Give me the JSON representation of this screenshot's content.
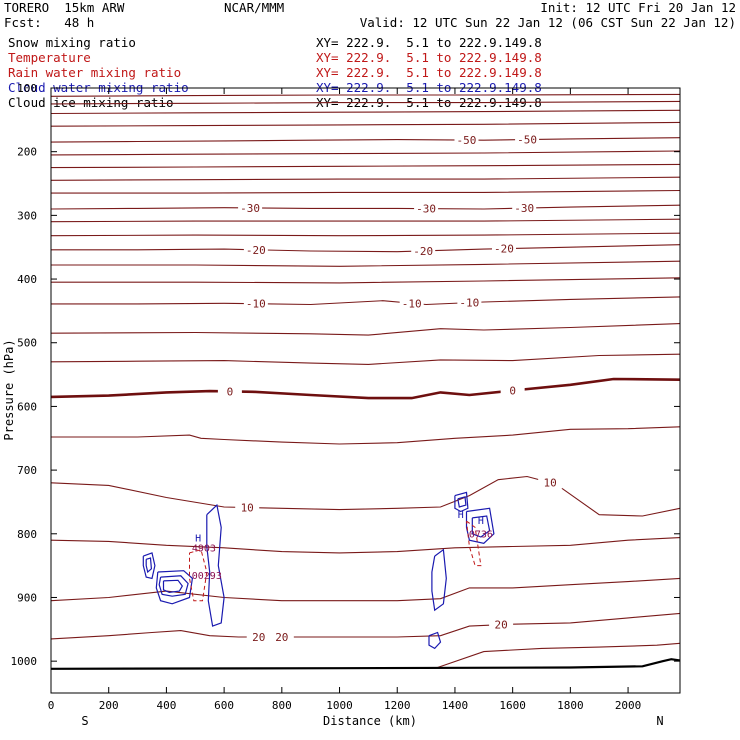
{
  "header": {
    "model": "TORERO  15km ARW",
    "org": "NCAR/MMM",
    "init": "Init: 12 UTC Fri 20 Jan 12",
    "fcst": "Fcst:   48 h",
    "valid": "Valid: 12 UTC Sun 22 Jan 12 (06 CST Sun 22 Jan 12)"
  },
  "fields": [
    {
      "name": "Snow mixing ratio",
      "xy": "XY= 222.9.  5.1 to 222.9.149.8",
      "color": "#000000"
    },
    {
      "name": "Temperature",
      "xy": "XY= 222.9.  5.1 to 222.9.149.8",
      "color": "#c01818"
    },
    {
      "name": "Rain water mixing ratio",
      "xy": "XY= 222.9.  5.1 to 222.9.149.8",
      "color": "#c01818"
    },
    {
      "name": "Cloud water mixing ratio",
      "xy": "XY= 222.9.  5.1 to 222.9.149.8",
      "color": "#1a1ab0"
    },
    {
      "name": "Cloud ice mixing ratio",
      "xy": "XY= 222.9.  5.1 to 222.9.149.8",
      "color": "#000000"
    }
  ],
  "chart_data": {
    "type": "contour",
    "xlabel": "Distance (km)",
    "ylabel": "Pressure (hPa)",
    "xlim": [
      0,
      2180
    ],
    "ylim": [
      1050,
      100
    ],
    "x_ticks": [
      0,
      200,
      400,
      600,
      800,
      1000,
      1200,
      1400,
      1600,
      1800,
      2000
    ],
    "x_tick_labels": [
      "0",
      "200",
      "400",
      "600",
      "800",
      "1000",
      "1200",
      "1400",
      "1600",
      "1800",
      "2000"
    ],
    "y_ticks": [
      100,
      200,
      300,
      400,
      500,
      600,
      700,
      800,
      900,
      1000
    ],
    "y_tick_labels": [
      "100",
      "200",
      "300",
      "400",
      "500",
      "600",
      "700",
      "800",
      "900",
      "1000"
    ],
    "end_labels": {
      "left": "S",
      "right": "N"
    },
    "colors": {
      "temperature": "#7a1a1a",
      "freezing": "#6e0f0f",
      "cloud_water": "#1a1ab0",
      "rain": "#c01818",
      "surface": "#000000"
    },
    "isotherms": [
      {
        "label_text": "-50",
        "label_x": [
          1440,
          1650
        ],
        "points": [
          [
            0,
            185
          ],
          [
            300,
            184
          ],
          [
            600,
            183
          ],
          [
            900,
            182
          ],
          [
            1200,
            181
          ],
          [
            1500,
            182
          ],
          [
            1800,
            180
          ],
          [
            2180,
            178
          ]
        ]
      },
      {
        "label_text": "-30",
        "label_x": [
          690,
          1300,
          1640
        ],
        "points": [
          [
            0,
            290
          ],
          [
            300,
            289
          ],
          [
            600,
            288
          ],
          [
            900,
            289
          ],
          [
            1200,
            289
          ],
          [
            1500,
            290
          ],
          [
            1800,
            287
          ],
          [
            2180,
            284
          ]
        ]
      },
      {
        "label_text": "-20",
        "label_x": [
          710,
          1290,
          1570
        ],
        "points": [
          [
            0,
            354
          ],
          [
            300,
            354
          ],
          [
            600,
            353
          ],
          [
            900,
            356
          ],
          [
            1200,
            357
          ],
          [
            1500,
            353
          ],
          [
            1800,
            350
          ],
          [
            2180,
            346
          ]
        ]
      },
      {
        "label_text": "-10",
        "label_x": [
          710,
          1250,
          1450
        ],
        "points": [
          [
            0,
            439
          ],
          [
            300,
            439
          ],
          [
            600,
            438
          ],
          [
            900,
            440
          ],
          [
            1150,
            434
          ],
          [
            1300,
            440
          ],
          [
            1500,
            436
          ],
          [
            1800,
            432
          ],
          [
            2180,
            428
          ]
        ]
      },
      {
        "label_text": "0",
        "label_x": [
          620,
          1600
        ],
        "freezing": true,
        "points": [
          [
            0,
            585
          ],
          [
            200,
            583
          ],
          [
            400,
            578
          ],
          [
            550,
            576
          ],
          [
            700,
            577
          ],
          [
            900,
            582
          ],
          [
            1100,
            587
          ],
          [
            1250,
            587
          ],
          [
            1350,
            578
          ],
          [
            1450,
            582
          ],
          [
            1600,
            575
          ],
          [
            1800,
            566
          ],
          [
            1950,
            557
          ],
          [
            2180,
            558
          ]
        ]
      },
      {
        "label_text": "10",
        "label_x": [
          680,
          1730
        ],
        "points": [
          [
            0,
            720
          ],
          [
            200,
            724
          ],
          [
            400,
            743
          ],
          [
            600,
            758
          ],
          [
            800,
            760
          ],
          [
            1000,
            762
          ],
          [
            1200,
            760
          ],
          [
            1350,
            758
          ],
          [
            1450,
            740
          ],
          [
            1550,
            715
          ],
          [
            1650,
            710
          ],
          [
            1750,
            722
          ],
          [
            1900,
            770
          ],
          [
            2050,
            772
          ],
          [
            2180,
            760
          ]
        ]
      },
      {
        "label_text": "20",
        "label_x": [
          720,
          800,
          1560
        ],
        "points": [
          [
            0,
            965
          ],
          [
            200,
            960
          ],
          [
            350,
            955
          ],
          [
            450,
            952
          ],
          [
            550,
            960
          ],
          [
            650,
            962
          ],
          [
            800,
            962
          ],
          [
            1000,
            962
          ],
          [
            1200,
            962
          ],
          [
            1350,
            960
          ],
          [
            1450,
            945
          ],
          [
            1600,
            942
          ],
          [
            1800,
            940
          ],
          [
            2000,
            932
          ],
          [
            2180,
            925
          ]
        ]
      }
    ],
    "background_isotherms": [
      [
        [
          0,
          113
        ],
        [
          500,
          112
        ],
        [
          1000,
          111
        ],
        [
          1500,
          111
        ],
        [
          2180,
          110
        ]
      ],
      [
        [
          0,
          125
        ],
        [
          500,
          124
        ],
        [
          1000,
          123
        ],
        [
          1500,
          123
        ],
        [
          2180,
          121
        ]
      ],
      [
        [
          0,
          140
        ],
        [
          500,
          139
        ],
        [
          1000,
          138
        ],
        [
          1500,
          137
        ],
        [
          2180,
          135
        ]
      ],
      [
        [
          0,
          160
        ],
        [
          500,
          159
        ],
        [
          1000,
          158
        ],
        [
          1500,
          157
        ],
        [
          2180,
          154
        ]
      ],
      [
        [
          0,
          205
        ],
        [
          500,
          204
        ],
        [
          1000,
          203
        ],
        [
          1500,
          202
        ],
        [
          2180,
          199
        ]
      ],
      [
        [
          0,
          225
        ],
        [
          500,
          224
        ],
        [
          1000,
          223
        ],
        [
          1500,
          222
        ],
        [
          2180,
          220
        ]
      ],
      [
        [
          0,
          245
        ],
        [
          500,
          244
        ],
        [
          1000,
          243
        ],
        [
          1500,
          243
        ],
        [
          2180,
          240
        ]
      ],
      [
        [
          0,
          265
        ],
        [
          500,
          265
        ],
        [
          1000,
          264
        ],
        [
          1500,
          264
        ],
        [
          2180,
          261
        ]
      ],
      [
        [
          0,
          310
        ],
        [
          500,
          309
        ],
        [
          1000,
          309
        ],
        [
          1500,
          309
        ],
        [
          2180,
          306
        ]
      ],
      [
        [
          0,
          332
        ],
        [
          500,
          331
        ],
        [
          1000,
          332
        ],
        [
          1500,
          331
        ],
        [
          2180,
          328
        ]
      ],
      [
        [
          0,
          378
        ],
        [
          500,
          378
        ],
        [
          1000,
          380
        ],
        [
          1500,
          377
        ],
        [
          2180,
          372
        ]
      ],
      [
        [
          0,
          405
        ],
        [
          500,
          405
        ],
        [
          1000,
          406
        ],
        [
          1500,
          403
        ],
        [
          2180,
          398
        ]
      ],
      [
        [
          0,
          485
        ],
        [
          500,
          484
        ],
        [
          900,
          486
        ],
        [
          1100,
          488
        ],
        [
          1350,
          478
        ],
        [
          1500,
          480
        ],
        [
          1800,
          476
        ],
        [
          2180,
          470
        ]
      ],
      [
        [
          0,
          530
        ],
        [
          300,
          529
        ],
        [
          600,
          528
        ],
        [
          900,
          532
        ],
        [
          1100,
          534
        ],
        [
          1350,
          527
        ],
        [
          1600,
          528
        ],
        [
          1900,
          520
        ],
        [
          2180,
          518
        ]
      ],
      [
        [
          0,
          648
        ],
        [
          300,
          648
        ],
        [
          480,
          645
        ],
        [
          520,
          650
        ],
        [
          600,
          652
        ],
        [
          800,
          656
        ],
        [
          1000,
          659
        ],
        [
          1200,
          657
        ],
        [
          1400,
          650
        ],
        [
          1600,
          645
        ],
        [
          1800,
          636
        ],
        [
          2000,
          635
        ],
        [
          2180,
          632
        ]
      ],
      [
        [
          0,
          810
        ],
        [
          200,
          812
        ],
        [
          400,
          818
        ],
        [
          600,
          822
        ],
        [
          800,
          828
        ],
        [
          1000,
          830
        ],
        [
          1200,
          828
        ],
        [
          1400,
          822
        ],
        [
          1600,
          820
        ],
        [
          1800,
          818
        ],
        [
          2000,
          810
        ],
        [
          2180,
          806
        ]
      ],
      [
        [
          0,
          905
        ],
        [
          200,
          900
        ],
        [
          400,
          890
        ],
        [
          600,
          900
        ],
        [
          800,
          905
        ],
        [
          1000,
          905
        ],
        [
          1200,
          905
        ],
        [
          1350,
          902
        ],
        [
          1450,
          885
        ],
        [
          1600,
          885
        ],
        [
          1800,
          880
        ],
        [
          2000,
          875
        ],
        [
          2180,
          870
        ]
      ],
      [
        [
          1340,
          1010
        ],
        [
          1500,
          985
        ],
        [
          1700,
          980
        ],
        [
          1900,
          978
        ],
        [
          2100,
          975
        ],
        [
          2180,
          972
        ]
      ]
    ],
    "surface": [
      [
        0,
        1012
      ],
      [
        1000,
        1011
      ],
      [
        1800,
        1010
      ],
      [
        2050,
        1008
      ],
      [
        2120,
        1000
      ],
      [
        2150,
        997
      ],
      [
        2180,
        999
      ]
    ],
    "cloud_water": [
      [
        [
          320,
          835
        ],
        [
          350,
          830
        ],
        [
          360,
          850
        ],
        [
          350,
          870
        ],
        [
          330,
          868
        ],
        [
          320,
          850
        ],
        [
          320,
          835
        ]
      ],
      [
        [
          330,
          840
        ],
        [
          345,
          838
        ],
        [
          348,
          855
        ],
        [
          335,
          860
        ],
        [
          330,
          850
        ],
        [
          330,
          840
        ]
      ],
      [
        [
          370,
          860
        ],
        [
          460,
          858
        ],
        [
          490,
          870
        ],
        [
          480,
          900
        ],
        [
          420,
          910
        ],
        [
          380,
          905
        ],
        [
          365,
          885
        ],
        [
          370,
          860
        ]
      ],
      [
        [
          380,
          868
        ],
        [
          450,
          866
        ],
        [
          475,
          878
        ],
        [
          465,
          895
        ],
        [
          420,
          898
        ],
        [
          385,
          895
        ],
        [
          375,
          880
        ],
        [
          380,
          868
        ]
      ],
      [
        [
          390,
          874
        ],
        [
          440,
          873
        ],
        [
          455,
          882
        ],
        [
          445,
          890
        ],
        [
          410,
          892
        ],
        [
          390,
          888
        ],
        [
          390,
          874
        ]
      ],
      [
        [
          540,
          770
        ],
        [
          575,
          755
        ],
        [
          590,
          790
        ],
        [
          580,
          850
        ],
        [
          600,
          900
        ],
        [
          590,
          940
        ],
        [
          560,
          945
        ],
        [
          545,
          905
        ],
        [
          550,
          860
        ],
        [
          540,
          820
        ],
        [
          540,
          770
        ]
      ],
      [
        [
          1330,
          835
        ],
        [
          1360,
          825
        ],
        [
          1370,
          870
        ],
        [
          1360,
          910
        ],
        [
          1330,
          920
        ],
        [
          1320,
          890
        ],
        [
          1320,
          860
        ],
        [
          1330,
          835
        ]
      ],
      [
        [
          1310,
          960
        ],
        [
          1340,
          955
        ],
        [
          1350,
          970
        ],
        [
          1330,
          980
        ],
        [
          1310,
          975
        ],
        [
          1310,
          960
        ]
      ],
      [
        [
          1400,
          740
        ],
        [
          1440,
          735
        ],
        [
          1445,
          760
        ],
        [
          1420,
          765
        ],
        [
          1400,
          760
        ],
        [
          1400,
          740
        ]
      ],
      [
        [
          1410,
          745
        ],
        [
          1435,
          742
        ],
        [
          1438,
          755
        ],
        [
          1415,
          758
        ],
        [
          1410,
          745
        ]
      ],
      [
        [
          1440,
          765
        ],
        [
          1520,
          760
        ],
        [
          1535,
          800
        ],
        [
          1500,
          815
        ],
        [
          1450,
          810
        ],
        [
          1440,
          790
        ],
        [
          1440,
          765
        ]
      ],
      [
        [
          1460,
          775
        ],
        [
          1510,
          772
        ],
        [
          1520,
          795
        ],
        [
          1490,
          805
        ],
        [
          1460,
          800
        ],
        [
          1460,
          775
        ]
      ]
    ],
    "rain": [
      [
        [
          480,
          830
        ],
        [
          520,
          825
        ],
        [
          540,
          860
        ],
        [
          525,
          905
        ],
        [
          495,
          905
        ],
        [
          480,
          870
        ],
        [
          480,
          830
        ]
      ],
      [
        [
          1440,
          780
        ],
        [
          1470,
          790
        ],
        [
          1480,
          820
        ],
        [
          1490,
          850
        ],
        [
          1470,
          850
        ],
        [
          1450,
          820
        ],
        [
          1440,
          780
        ]
      ]
    ],
    "max_labels": [
      {
        "text": "H",
        "x": 510,
        "p": 812
      },
      {
        "text": "4903",
        "x": 530,
        "p": 828
      },
      {
        "text": "00293",
        "x": 540,
        "p": 871
      },
      {
        "text": "H",
        "x": 1420,
        "p": 775
      },
      {
        "text": "0736",
        "x": 1490,
        "p": 806
      },
      {
        "text": "H",
        "x": 1490,
        "p": 785
      }
    ]
  }
}
